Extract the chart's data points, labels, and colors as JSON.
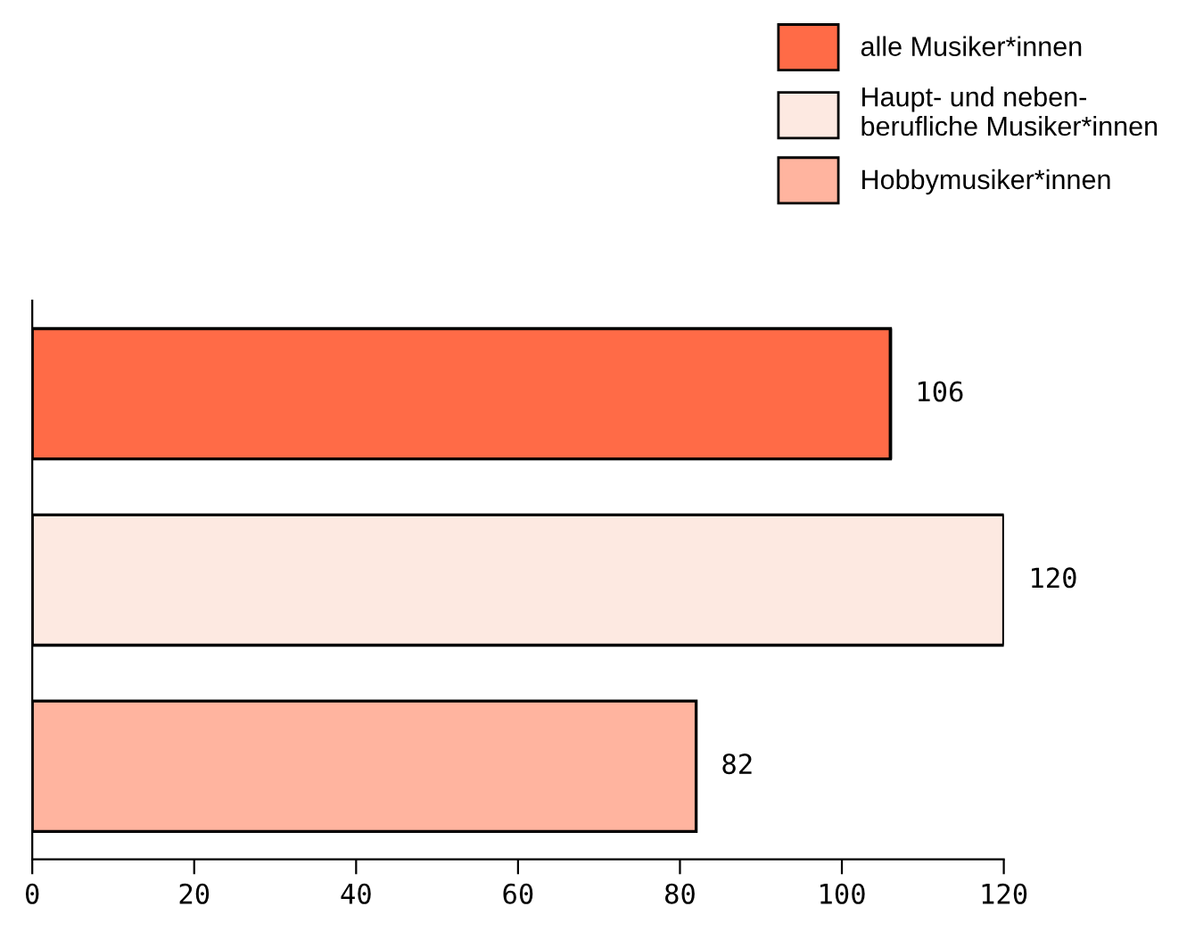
{
  "chart_data": {
    "type": "bar",
    "orientation": "horizontal",
    "stacked": true,
    "categories": [
      null,
      null,
      null
    ],
    "series": [
      {
        "name": "alle Musiker*innen",
        "color": "#ff6b47",
        "values": [
          106,
          null,
          null
        ]
      },
      {
        "name": "Haupt- und neben-\nberufliche Musiker*innen",
        "color": "#fde9e1",
        "values": [
          null,
          120,
          null
        ]
      },
      {
        "name": "Hobbymusiker*innen",
        "color": "#ffb49f",
        "values": [
          null,
          null,
          82
        ]
      }
    ],
    "xlim": [
      0,
      120
    ],
    "xticks": [
      0,
      20,
      40,
      60,
      80,
      100,
      120
    ],
    "data_labels": true,
    "legend": "top right",
    "grid": false
  }
}
